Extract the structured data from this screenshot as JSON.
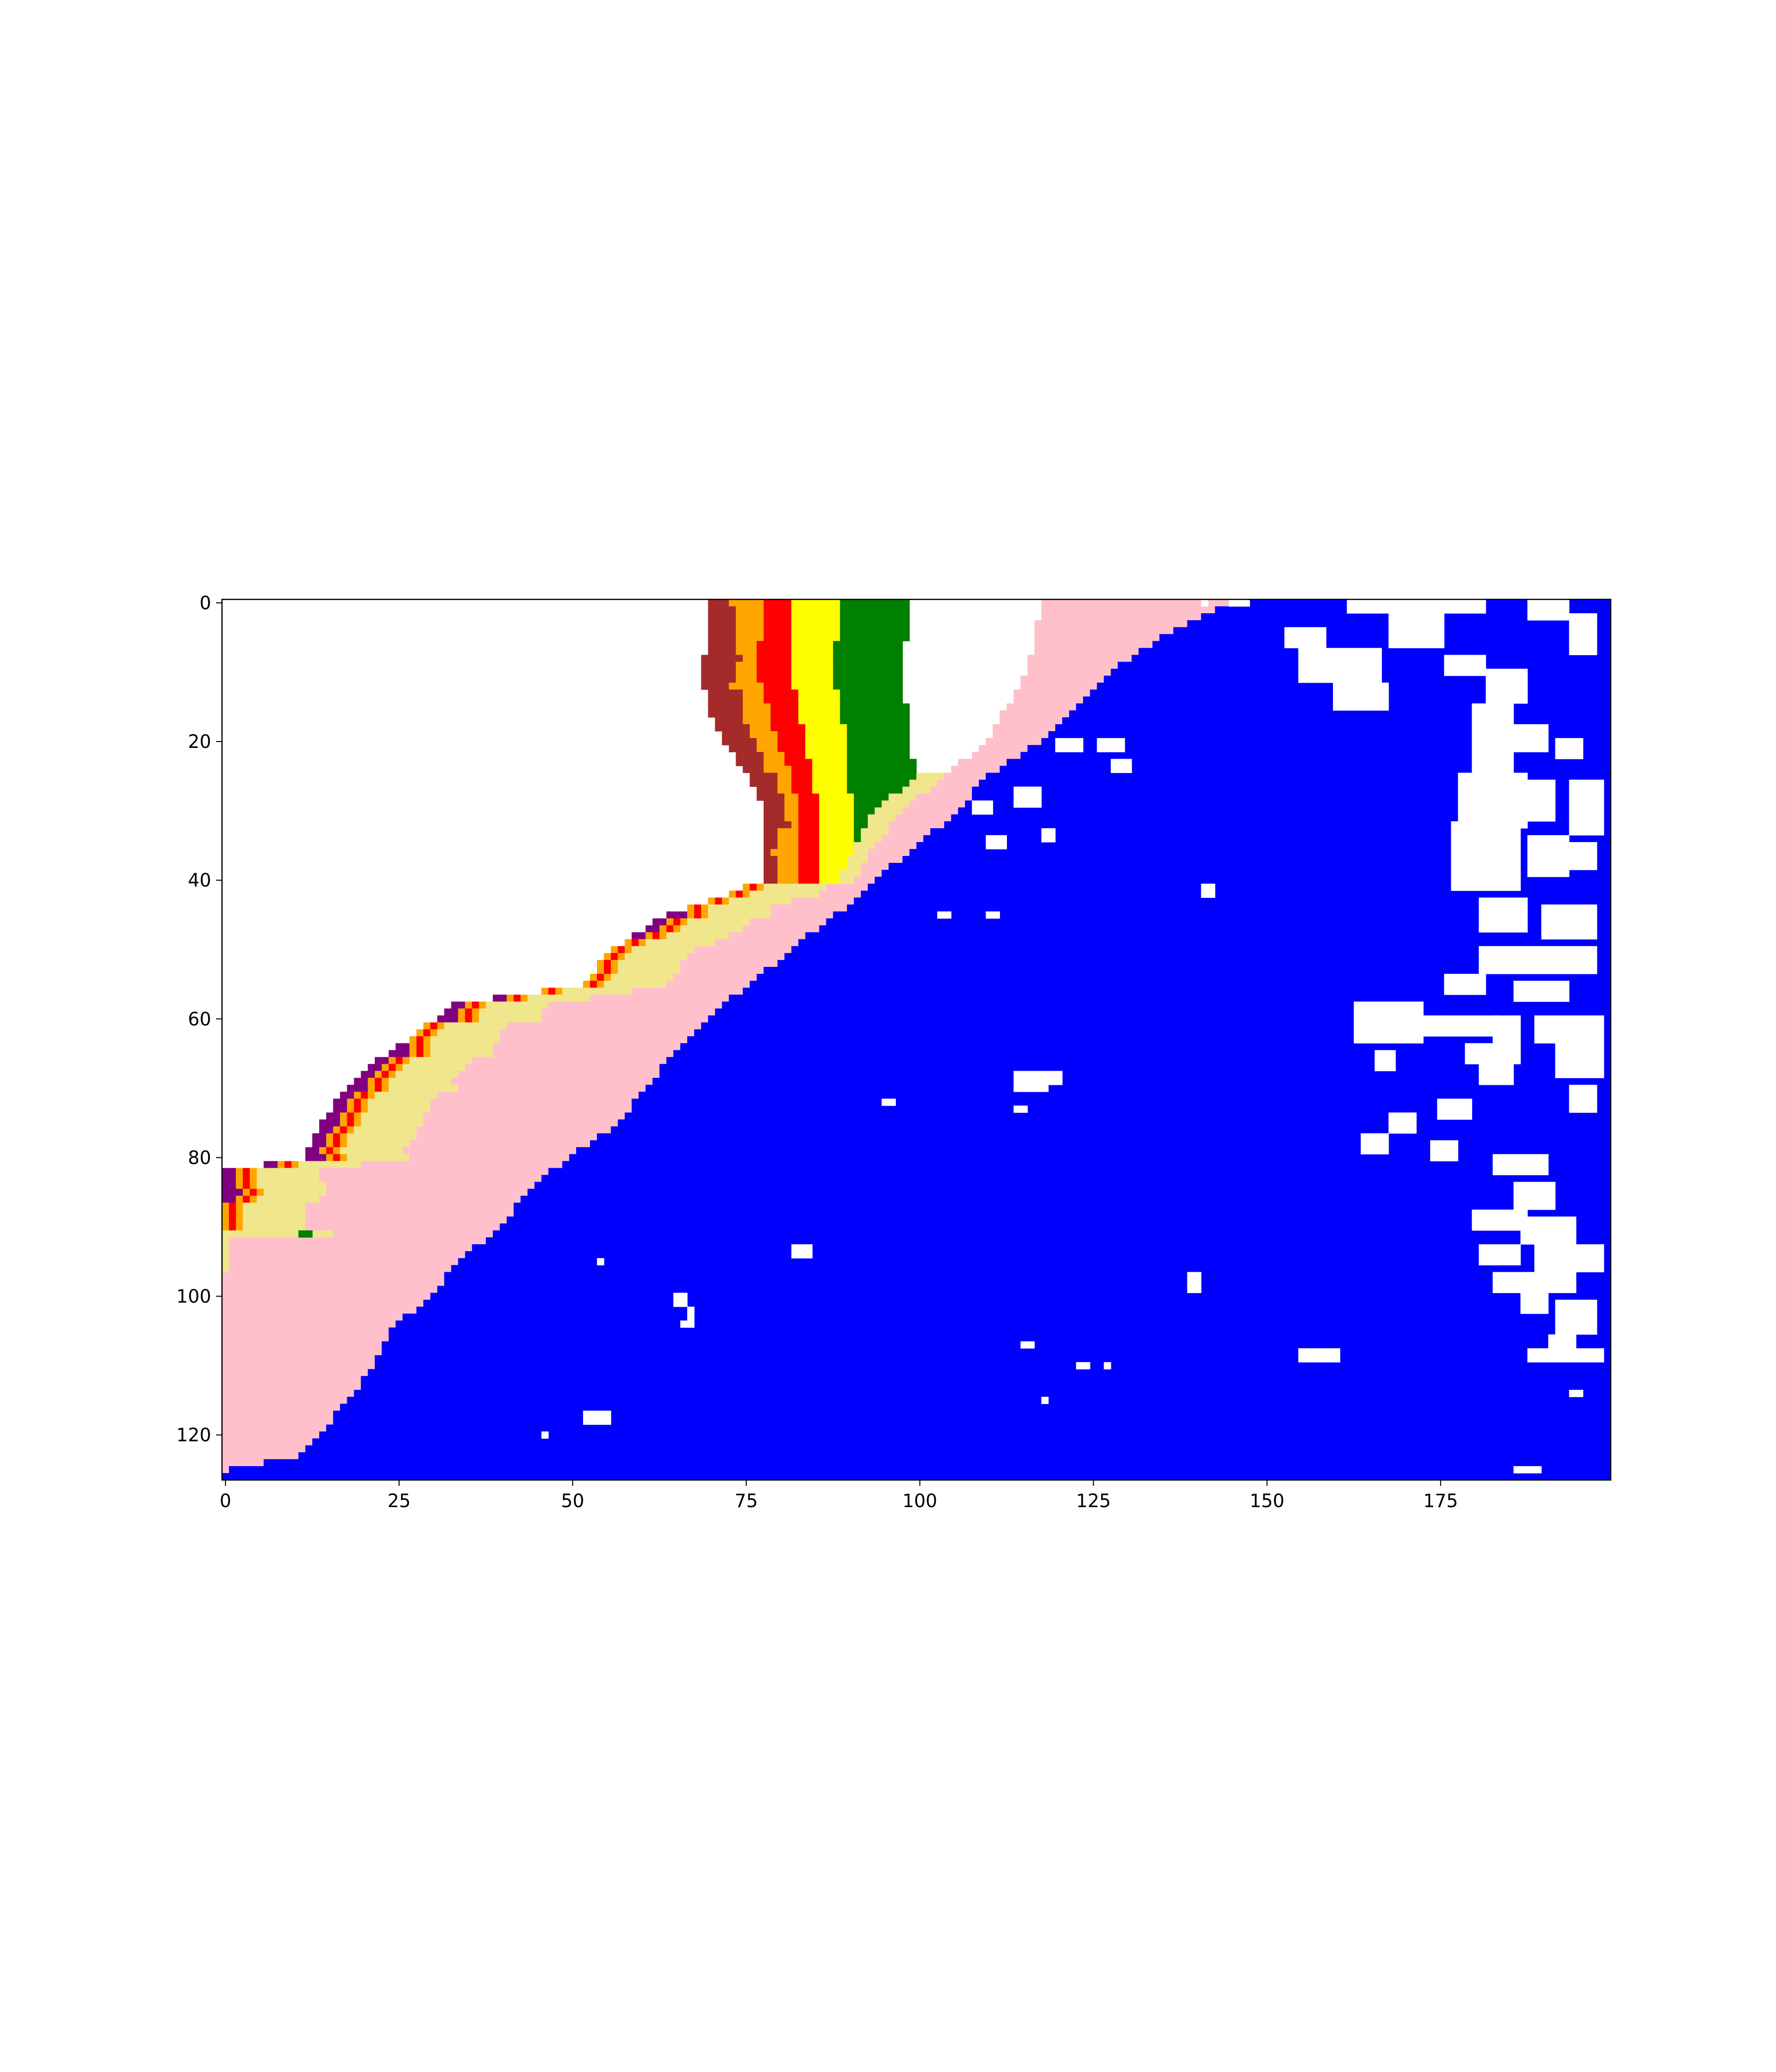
{
  "chart_data": {
    "type": "heatmap",
    "title": "",
    "xlabel": "",
    "ylabel": "",
    "x_extent": [
      -0.5,
      199.5
    ],
    "y_extent": [
      126.5,
      -0.5
    ],
    "y_axis_inverted": true,
    "grid": false,
    "legend": "none",
    "xticks": [
      0,
      25,
      50,
      75,
      100,
      125,
      150,
      175
    ],
    "xtick_labels": [
      "0",
      "25",
      "50",
      "75",
      "100",
      "125",
      "150",
      "175"
    ],
    "yticks": [
      0,
      20,
      40,
      60,
      80,
      100,
      120
    ],
    "ytick_labels": [
      "0",
      "20",
      "40",
      "60",
      "80",
      "100",
      "120"
    ],
    "category_colors": {
      "empty": "#ffffff",
      "purple": "#800080",
      "brown": "#a52a2a",
      "orange": "#ffa500",
      "red": "#ff0000",
      "yellow": "#ffff00",
      "green": "#008000",
      "khaki": "#f0e68c",
      "pink": "#ffc0cb",
      "blue": "#0000ff"
    },
    "band_order": [
      "purple",
      "brown",
      "orange",
      "red",
      "orange2",
      "yellow",
      "green",
      "khaki",
      "pink"
    ],
    "boundaries": [
      {
        "y": 0,
        "coast": 70,
        "sea": 145
      },
      {
        "y": 5,
        "coast": 70,
        "sea": 135
      },
      {
        "y": 10,
        "coast": 69,
        "sea": 128
      },
      {
        "y": 15,
        "coast": 70,
        "sea": 123
      },
      {
        "y": 20,
        "coast": 72,
        "sea": 118
      },
      {
        "y": 25,
        "coast": 76,
        "sea": 110
      },
      {
        "y": 30,
        "coast": 78,
        "sea": 106
      },
      {
        "y": 35,
        "coast": 78,
        "sea": 100
      },
      {
        "y": 40,
        "coast": 78,
        "sea": 94
      },
      {
        "y": 43,
        "coast": 70,
        "sea": 91
      },
      {
        "y": 45,
        "coast": 64,
        "sea": 88
      },
      {
        "y": 50,
        "coast": 56,
        "sea": 82
      },
      {
        "y": 55,
        "coast": 52,
        "sea": 76
      },
      {
        "y": 58,
        "coast": 33,
        "sea": 72
      },
      {
        "y": 62,
        "coast": 28,
        "sea": 68
      },
      {
        "y": 66,
        "coast": 22,
        "sea": 64
      },
      {
        "y": 70,
        "coast": 18,
        "sea": 61
      },
      {
        "y": 75,
        "coast": 14,
        "sea": 57
      },
      {
        "y": 80,
        "coast": 12,
        "sea": 50
      },
      {
        "y": 82,
        "coast": 0,
        "sea": 47
      },
      {
        "y": 86,
        "coast": 0,
        "sea": 43
      },
      {
        "y": 90,
        "coast": 0,
        "sea": 40
      },
      {
        "y": 95,
        "coast": 0,
        "sea": 34
      },
      {
        "y": 100,
        "coast": 0,
        "sea": 30
      },
      {
        "y": 105,
        "coast": 0,
        "sea": 24
      },
      {
        "y": 110,
        "coast": 0,
        "sea": 22
      },
      {
        "y": 115,
        "coast": 0,
        "sea": 18
      },
      {
        "y": 120,
        "coast": 0,
        "sea": 14
      },
      {
        "y": 123,
        "coast": 0,
        "sea": 11
      },
      {
        "y": 125,
        "coast": 0,
        "sea": 1
      },
      {
        "y": 126,
        "coast": 0,
        "sea": 0
      }
    ],
    "inner_edges": [
      {
        "y": 0,
        "brown": 74,
        "orange": 78,
        "red": 82,
        "yellow": 89,
        "green": 99,
        "khaki": 118
      },
      {
        "y": 10,
        "brown": 74,
        "orange": 77,
        "red": 82,
        "yellow": 88,
        "green": 98,
        "khaki": 116
      },
      {
        "y": 20,
        "brown": 76,
        "orange": 80,
        "red": 84,
        "yellow": 90,
        "green": 99,
        "khaki": 110
      },
      {
        "y": 25,
        "brown": 80,
        "orange": 82,
        "red": 85,
        "yellow": 90,
        "green": 100,
        "khaki": 104
      },
      {
        "y": 30,
        "brown": 81,
        "orange": 83,
        "red": 86,
        "yellow": 91,
        "green": 94,
        "khaki": 98
      },
      {
        "y": 35,
        "brown": 80,
        "orange": 83,
        "red": 86,
        "yellow": 91,
        "green": 91,
        "khaki": 94
      },
      {
        "y": 40,
        "brown": 80,
        "orange": 83,
        "red": 86,
        "yellow": 89,
        "green": 89,
        "khaki": 91
      }
    ],
    "shore_bands": {
      "purple": 2,
      "orange": 1,
      "red": 1.2,
      "khaki": 9
    },
    "white_patches": [
      {
        "x": 141,
        "y": 0,
        "w": 1,
        "h": 1
      },
      {
        "x": 145,
        "y": 0,
        "w": 3,
        "h": 1
      },
      {
        "x": 153,
        "y": 4,
        "w": 6,
        "h": 3
      },
      {
        "x": 155,
        "y": 7,
        "w": 12,
        "h": 5
      },
      {
        "x": 160,
        "y": 12,
        "w": 8,
        "h": 4
      },
      {
        "x": 162,
        "y": 0,
        "w": 20,
        "h": 2
      },
      {
        "x": 168,
        "y": 2,
        "w": 8,
        "h": 5
      },
      {
        "x": 176,
        "y": 8,
        "w": 6,
        "h": 3
      },
      {
        "x": 182,
        "y": 10,
        "w": 6,
        "h": 5
      },
      {
        "x": 188,
        "y": 0,
        "w": 6,
        "h": 3
      },
      {
        "x": 194,
        "y": 2,
        "w": 4,
        "h": 6
      },
      {
        "x": 180,
        "y": 15,
        "w": 6,
        "h": 10
      },
      {
        "x": 186,
        "y": 18,
        "w": 5,
        "h": 4
      },
      {
        "x": 192,
        "y": 20,
        "w": 4,
        "h": 3
      },
      {
        "x": 178,
        "y": 25,
        "w": 10,
        "h": 8
      },
      {
        "x": 188,
        "y": 26,
        "w": 4,
        "h": 6
      },
      {
        "x": 194,
        "y": 26,
        "w": 5,
        "h": 8
      },
      {
        "x": 177,
        "y": 32,
        "w": 10,
        "h": 10
      },
      {
        "x": 188,
        "y": 34,
        "w": 6,
        "h": 6
      },
      {
        "x": 194,
        "y": 35,
        "w": 4,
        "h": 4
      },
      {
        "x": 181,
        "y": 43,
        "w": 7,
        "h": 5
      },
      {
        "x": 190,
        "y": 44,
        "w": 8,
        "h": 5
      },
      {
        "x": 181,
        "y": 50,
        "w": 17,
        "h": 4
      },
      {
        "x": 186,
        "y": 55,
        "w": 8,
        "h": 3
      },
      {
        "x": 189,
        "y": 60,
        "w": 10,
        "h": 4
      },
      {
        "x": 192,
        "y": 64,
        "w": 7,
        "h": 5
      },
      {
        "x": 194,
        "y": 70,
        "w": 4,
        "h": 4
      },
      {
        "x": 176,
        "y": 54,
        "w": 6,
        "h": 3
      },
      {
        "x": 163,
        "y": 58,
        "w": 10,
        "h": 6
      },
      {
        "x": 172,
        "y": 60,
        "w": 4,
        "h": 3
      },
      {
        "x": 166,
        "y": 65,
        "w": 3,
        "h": 3
      },
      {
        "x": 176,
        "y": 60,
        "w": 8,
        "h": 3
      },
      {
        "x": 179,
        "y": 64,
        "w": 8,
        "h": 3
      },
      {
        "x": 183,
        "y": 60,
        "w": 4,
        "h": 4
      },
      {
        "x": 181,
        "y": 67,
        "w": 5,
        "h": 3
      },
      {
        "x": 175,
        "y": 72,
        "w": 5,
        "h": 3
      },
      {
        "x": 168,
        "y": 74,
        "w": 4,
        "h": 3
      },
      {
        "x": 164,
        "y": 77,
        "w": 4,
        "h": 3
      },
      {
        "x": 174,
        "y": 78,
        "w": 4,
        "h": 3
      },
      {
        "x": 183,
        "y": 80,
        "w": 8,
        "h": 3
      },
      {
        "x": 186,
        "y": 84,
        "w": 6,
        "h": 4
      },
      {
        "x": 180,
        "y": 88,
        "w": 8,
        "h": 3
      },
      {
        "x": 187,
        "y": 89,
        "w": 8,
        "h": 4
      },
      {
        "x": 181,
        "y": 93,
        "w": 6,
        "h": 3
      },
      {
        "x": 189,
        "y": 93,
        "w": 10,
        "h": 4
      },
      {
        "x": 183,
        "y": 97,
        "w": 12,
        "h": 3
      },
      {
        "x": 187,
        "y": 100,
        "w": 4,
        "h": 3
      },
      {
        "x": 192,
        "y": 101,
        "w": 6,
        "h": 5
      },
      {
        "x": 191,
        "y": 106,
        "w": 4,
        "h": 3
      },
      {
        "x": 188,
        "y": 108,
        "w": 11,
        "h": 2
      },
      {
        "x": 120,
        "y": 20,
        "w": 4,
        "h": 2
      },
      {
        "x": 126,
        "y": 20,
        "w": 4,
        "h": 2
      },
      {
        "x": 128,
        "y": 23,
        "w": 3,
        "h": 2
      },
      {
        "x": 114,
        "y": 27,
        "w": 4,
        "h": 3
      },
      {
        "x": 108,
        "y": 29,
        "w": 3,
        "h": 2
      },
      {
        "x": 110,
        "y": 34,
        "w": 3,
        "h": 2
      },
      {
        "x": 118,
        "y": 33,
        "w": 2,
        "h": 2
      },
      {
        "x": 141,
        "y": 41,
        "w": 2,
        "h": 2
      },
      {
        "x": 110,
        "y": 45,
        "w": 2,
        "h": 1
      },
      {
        "x": 103,
        "y": 45,
        "w": 2,
        "h": 1
      },
      {
        "x": 114,
        "y": 68,
        "w": 5,
        "h": 3
      },
      {
        "x": 119,
        "y": 68,
        "w": 2,
        "h": 2
      },
      {
        "x": 114,
        "y": 73,
        "w": 2,
        "h": 1
      },
      {
        "x": 95,
        "y": 72,
        "w": 2,
        "h": 1
      },
      {
        "x": 82,
        "y": 93,
        "w": 3,
        "h": 2
      },
      {
        "x": 54,
        "y": 95,
        "w": 1,
        "h": 1
      },
      {
        "x": 65,
        "y": 100,
        "w": 2,
        "h": 2
      },
      {
        "x": 67,
        "y": 102,
        "w": 1,
        "h": 2
      },
      {
        "x": 66,
        "y": 104,
        "w": 2,
        "h": 1
      },
      {
        "x": 139,
        "y": 97,
        "w": 2,
        "h": 3
      },
      {
        "x": 155,
        "y": 108,
        "w": 6,
        "h": 2
      },
      {
        "x": 115,
        "y": 107,
        "w": 2,
        "h": 1
      },
      {
        "x": 123,
        "y": 110,
        "w": 2,
        "h": 1
      },
      {
        "x": 127,
        "y": 110,
        "w": 1,
        "h": 1
      },
      {
        "x": 118,
        "y": 115,
        "w": 1,
        "h": 1
      },
      {
        "x": 52,
        "y": 117,
        "w": 4,
        "h": 2
      },
      {
        "x": 46,
        "y": 120,
        "w": 1,
        "h": 1
      },
      {
        "x": 194,
        "y": 114,
        "w": 2,
        "h": 1
      },
      {
        "x": 186,
        "y": 125,
        "w": 4,
        "h": 1
      }
    ],
    "green_patches": [
      {
        "x": 11,
        "y": 91,
        "w": 2,
        "h": 1
      }
    ]
  }
}
